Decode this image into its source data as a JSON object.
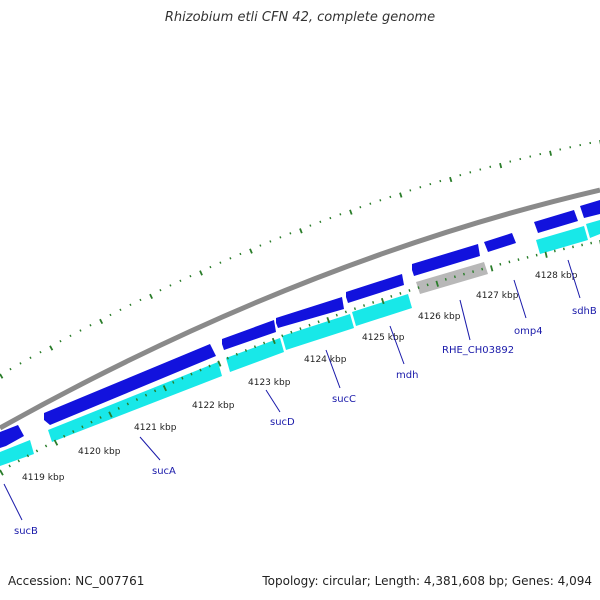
{
  "title": "Rhizobium etli CFN 42, complete genome",
  "footer": {
    "accession": "Accession: NC_007761",
    "summary": "Topology: circular; Length: 4,381,608 bp; Genes: 4,094"
  },
  "colors": {
    "backbone": "#8a8a8a",
    "gene_forward": "#1212dd",
    "gene_cds": "#18e8e8",
    "gene_other": "#b8b8b8",
    "tick": "#2a7d2a",
    "label": "#1a1aaa"
  },
  "map": {
    "kbp_labels": [
      "4119 kbp",
      "4120 kbp",
      "4121 kbp",
      "4122 kbp",
      "4123 kbp",
      "4124 kbp",
      "4125 kbp",
      "4126 kbp",
      "4127 kbp",
      "4128 kbp"
    ],
    "genes": [
      {
        "name": "sucB"
      },
      {
        "name": "sucA"
      },
      {
        "name": "sucD"
      },
      {
        "name": "sucC"
      },
      {
        "name": "mdh"
      },
      {
        "name": "RHE_CH03892"
      },
      {
        "name": "omp4"
      },
      {
        "name": "sdhB"
      }
    ]
  }
}
